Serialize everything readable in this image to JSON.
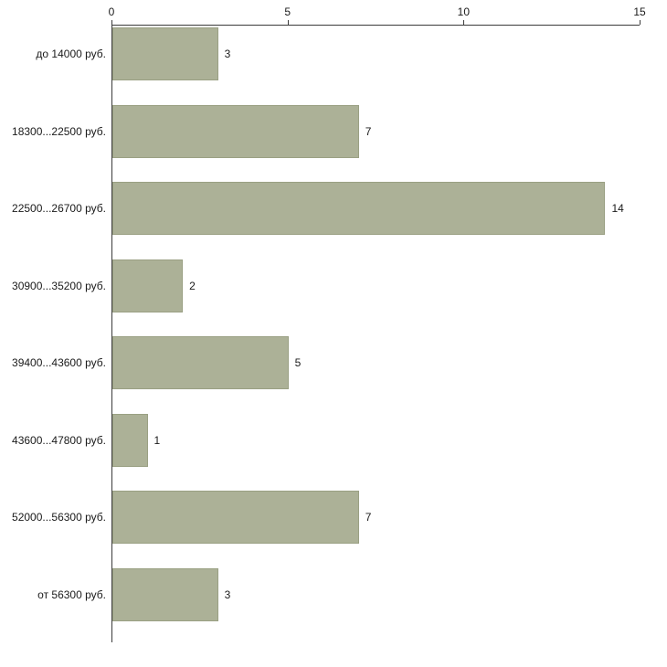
{
  "chart_data": {
    "type": "bar",
    "orientation": "horizontal",
    "title": "",
    "xlabel": "",
    "ylabel": "",
    "categories": [
      "до 14000 руб.",
      "18300...22500 руб.",
      "22500...26700 руб.",
      "30900...35200 руб.",
      "39400...43600 руб.",
      "43600...47800 руб.",
      "52000...56300 руб.",
      "от 56300 руб."
    ],
    "values": [
      3,
      7,
      14,
      2,
      5,
      1,
      7,
      3
    ],
    "value_labels": [
      "3",
      "7",
      "14",
      "2",
      "5",
      "1",
      "7",
      "3"
    ],
    "x_axis": {
      "position": "top",
      "ticks": [
        0,
        5,
        10,
        15
      ],
      "tick_labels": [
        "0",
        "5",
        "10",
        "15"
      ],
      "min": 0,
      "max": 15
    },
    "grid": false,
    "legend": false,
    "colors": {
      "bar_fill": "#acb197",
      "bar_border": "#9aa083",
      "axis": "#3c3c3c",
      "background": "#ffffff"
    }
  }
}
